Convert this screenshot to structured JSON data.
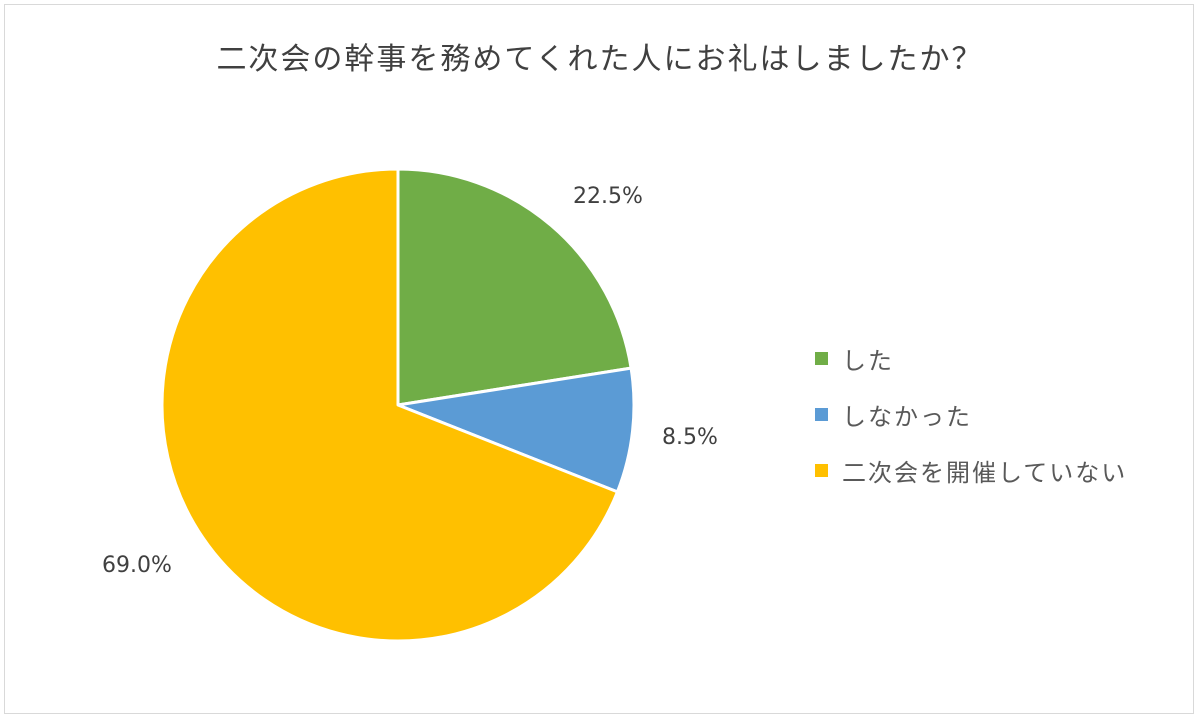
{
  "chart_data": {
    "type": "pie",
    "title": "二次会の幹事を務めてくれた人にお礼はしましたか？",
    "categories": [
      "した",
      "しなかった",
      "二次会を開催していない"
    ],
    "values": [
      22.5,
      8.5,
      69.0
    ],
    "labels": [
      "22.5%",
      "8.5%",
      "69.0%"
    ],
    "colors": [
      "#70ad47",
      "#5b9bd5",
      "#ffc000"
    ],
    "start_angle": "12 o'clock",
    "direction": "clockwise",
    "legend_position": "right"
  }
}
